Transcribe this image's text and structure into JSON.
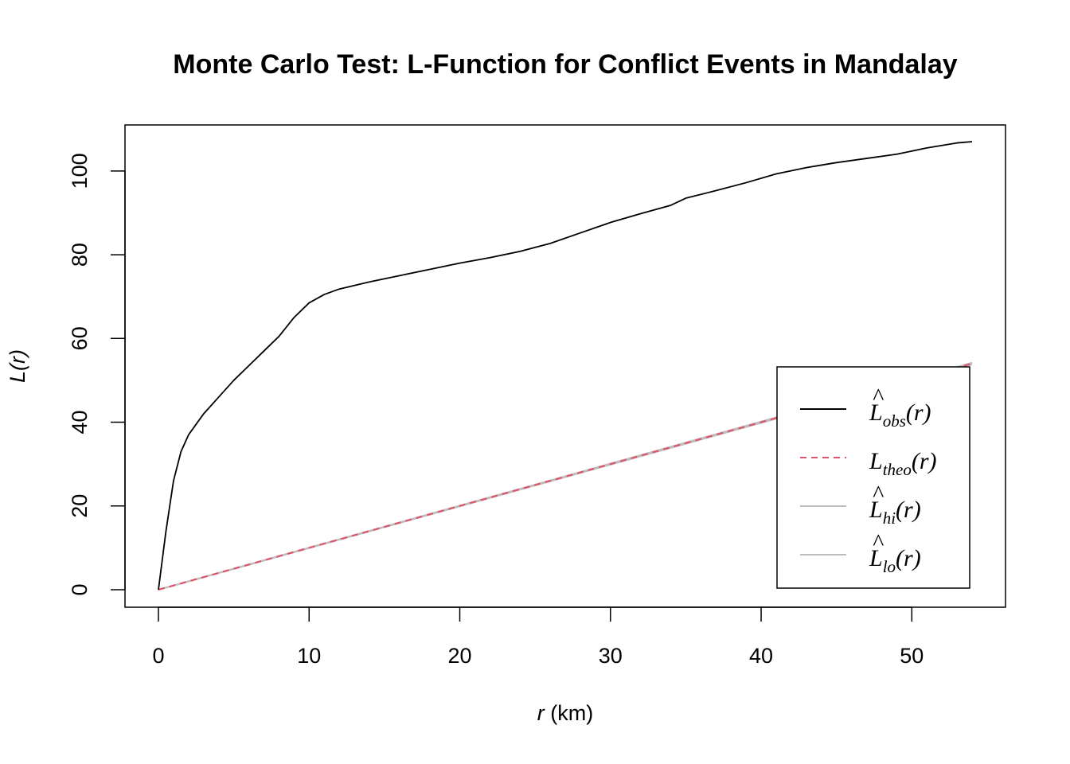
{
  "chart_data": {
    "type": "line",
    "title": "Monte Carlo Test: L-Function for Conflict Events in Mandalay",
    "xlabel": {
      "var": "r",
      "unit": " (km)"
    },
    "ylabel": {
      "main": "L",
      "arg": "(r)"
    },
    "xlim": [
      0,
      54
    ],
    "ylim": [
      0,
      107
    ],
    "x_ticks": [
      0,
      10,
      20,
      30,
      40,
      50
    ],
    "y_ticks": [
      0,
      20,
      40,
      60,
      80,
      100
    ],
    "grid": false,
    "legend_position": "bottom-right",
    "colors": {
      "obs": "#000000",
      "theo": "#DF536B",
      "hi": "#BEBEBE",
      "lo": "#BEBEBE"
    },
    "series": [
      {
        "key": "obs",
        "name": "L̂obs(r)",
        "legend": {
          "base": "L",
          "hat": true,
          "sub": "obs",
          "arg": "(r)"
        },
        "style": "solid",
        "x": [
          0,
          0.5,
          1,
          1.5,
          2,
          3,
          4,
          5,
          6,
          7,
          8,
          9,
          10,
          11,
          12,
          14,
          16,
          18,
          20,
          22,
          24,
          26,
          28,
          30,
          32,
          34,
          35,
          37,
          39,
          41,
          43,
          45,
          47,
          49,
          51,
          53,
          54
        ],
        "y": [
          0,
          14,
          26,
          33,
          37,
          42,
          46,
          50,
          53.5,
          57,
          60.5,
          65,
          68.5,
          70.5,
          71.8,
          73.5,
          75,
          76.5,
          78,
          79.3,
          80.8,
          82.7,
          85.2,
          87.7,
          89.8,
          91.8,
          93.5,
          95.3,
          97.2,
          99.3,
          100.8,
          102,
          103,
          104,
          105.5,
          106.7,
          107
        ]
      },
      {
        "key": "theo",
        "name": "Ltheo(r)",
        "legend": {
          "base": "L",
          "hat": false,
          "sub": "theo",
          "arg": "(r)"
        },
        "style": "dashed",
        "x": [
          0,
          54
        ],
        "y": [
          0,
          54
        ]
      },
      {
        "key": "hi",
        "name": "L̂hi(r)",
        "legend": {
          "base": "L",
          "hat": true,
          "sub": "hi",
          "arg": "(r)"
        },
        "style": "solid",
        "x": [
          0,
          54
        ],
        "y": [
          0,
          54.2
        ]
      },
      {
        "key": "lo",
        "name": "L̂lo(r)",
        "legend": {
          "base": "L",
          "hat": true,
          "sub": "lo",
          "arg": "(r)"
        },
        "style": "solid",
        "x": [
          0,
          54
        ],
        "y": [
          0,
          53.8
        ]
      }
    ]
  }
}
